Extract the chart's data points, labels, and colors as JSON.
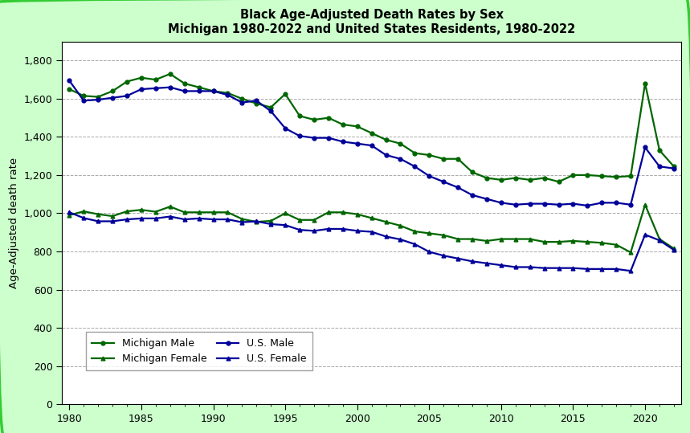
{
  "title_line1": "Black Age-Adjusted Death Rates by Sex",
  "title_line2": "Michigan 1980-2022 and United States Residents, 1980-2022",
  "ylabel": "Age-Adjusted death rate",
  "years": [
    1980,
    1981,
    1982,
    1983,
    1984,
    1985,
    1986,
    1987,
    1988,
    1989,
    1990,
    1991,
    1992,
    1993,
    1994,
    1995,
    1996,
    1997,
    1998,
    1999,
    2000,
    2001,
    2002,
    2003,
    2004,
    2005,
    2006,
    2007,
    2008,
    2009,
    2010,
    2011,
    2012,
    2013,
    2014,
    2015,
    2016,
    2017,
    2018,
    2019,
    2020,
    2021,
    2022
  ],
  "michigan_male": [
    1650,
    1615,
    1610,
    1640,
    1690,
    1710,
    1700,
    1730,
    1680,
    1660,
    1640,
    1630,
    1600,
    1575,
    1555,
    1625,
    1510,
    1490,
    1500,
    1465,
    1455,
    1420,
    1385,
    1365,
    1315,
    1305,
    1285,
    1285,
    1215,
    1185,
    1175,
    1185,
    1175,
    1185,
    1165,
    1200,
    1200,
    1195,
    1190,
    1195,
    1680,
    1330,
    1245
  ],
  "michigan_female": [
    990,
    1010,
    995,
    985,
    1010,
    1018,
    1008,
    1035,
    1005,
    1005,
    1005,
    1005,
    970,
    955,
    960,
    1000,
    965,
    965,
    1005,
    1005,
    995,
    975,
    955,
    935,
    905,
    895,
    885,
    865,
    865,
    855,
    865,
    865,
    865,
    850,
    850,
    855,
    850,
    845,
    835,
    795,
    1045,
    865,
    815
  ],
  "us_male": [
    1695,
    1590,
    1595,
    1605,
    1615,
    1650,
    1655,
    1660,
    1640,
    1640,
    1640,
    1620,
    1580,
    1590,
    1535,
    1445,
    1405,
    1395,
    1395,
    1375,
    1365,
    1355,
    1305,
    1285,
    1245,
    1195,
    1165,
    1135,
    1095,
    1075,
    1055,
    1045,
    1050,
    1050,
    1045,
    1050,
    1040,
    1055,
    1055,
    1045,
    1345,
    1245,
    1235
  ],
  "us_female": [
    1005,
    975,
    958,
    958,
    968,
    973,
    973,
    983,
    968,
    973,
    968,
    968,
    953,
    958,
    943,
    938,
    913,
    908,
    918,
    918,
    908,
    903,
    878,
    863,
    838,
    798,
    778,
    763,
    748,
    738,
    728,
    718,
    718,
    713,
    713,
    713,
    708,
    708,
    708,
    698,
    888,
    858,
    808
  ],
  "michigan_male_color": "#006600",
  "michigan_female_color": "#006600",
  "us_male_color": "#000099",
  "us_female_color": "#000099",
  "background_color": "#ccffcc",
  "ylim": [
    0,
    1900
  ],
  "yticks": [
    0,
    200,
    400,
    600,
    800,
    1000,
    1200,
    1400,
    1600,
    1800
  ],
  "xlim": [
    1979.5,
    2022.5
  ],
  "xticks": [
    1980,
    1985,
    1990,
    1995,
    2000,
    2005,
    2010,
    2015,
    2020
  ],
  "legend_labels": [
    "Michigan Male",
    "Michigan Female",
    "U.S. Male",
    "U.S. Female"
  ]
}
